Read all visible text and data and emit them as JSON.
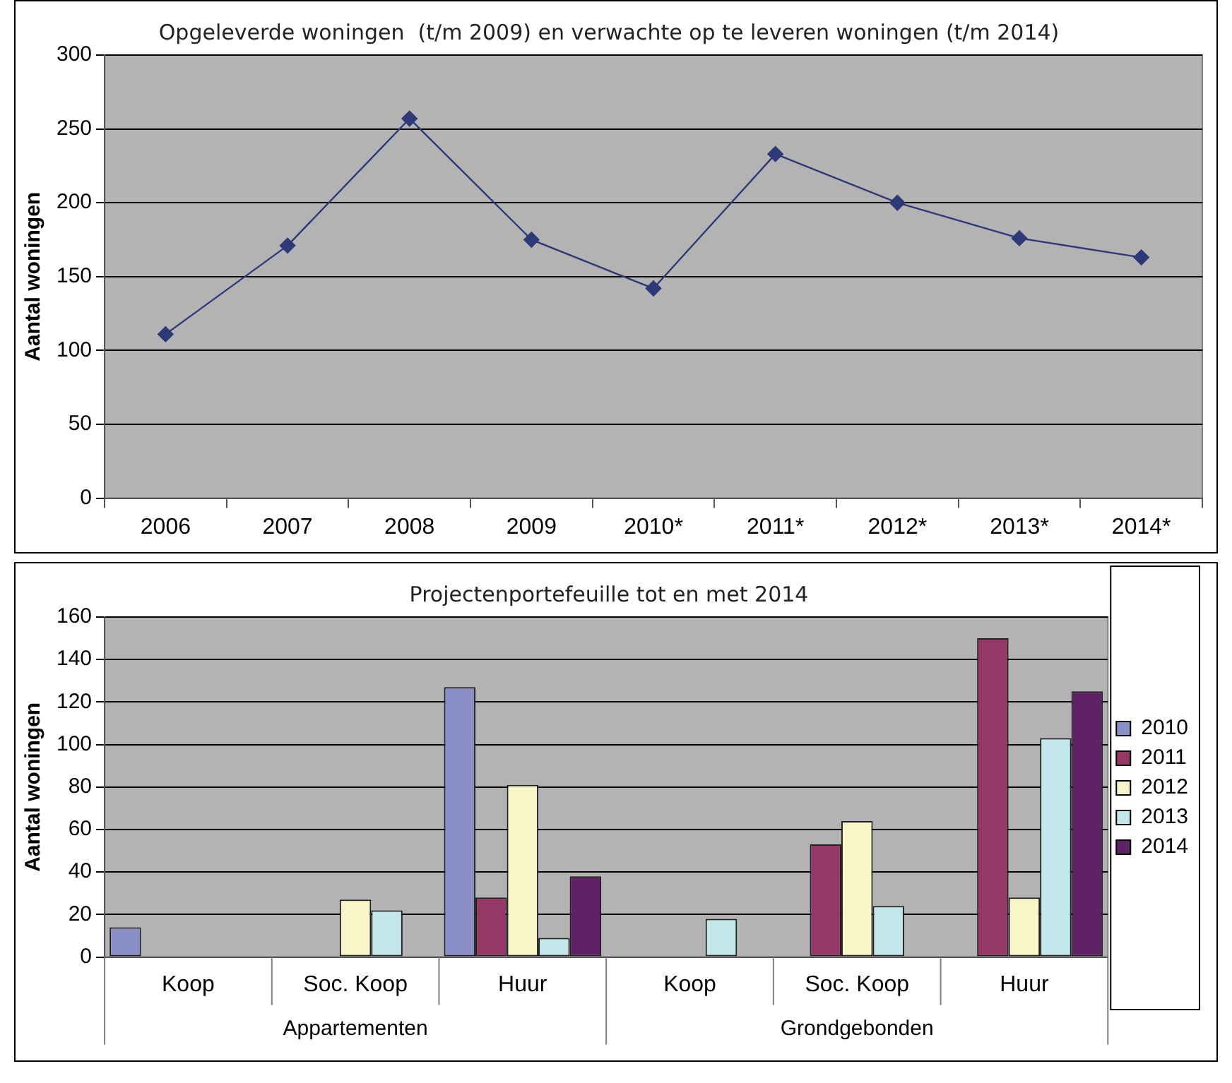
{
  "chart_data": [
    {
      "type": "line",
      "title": "Opgeleverde woningen  (t/m 2009) en verwachte op te leveren woningen (t/m 2014)",
      "ylabel": "Aantal woningen",
      "categories": [
        "2006",
        "2007",
        "2008",
        "2009",
        "2010*",
        "2011*",
        "2012*",
        "2013*",
        "2014*"
      ],
      "series": [
        {
          "color": "#2e3a78",
          "values": [
            111,
            171,
            257,
            175,
            142,
            233,
            200,
            176,
            163
          ]
        }
      ],
      "ylim": [
        0,
        300
      ],
      "yticks": [
        0,
        50,
        100,
        150,
        200,
        250,
        300
      ],
      "grid": "y",
      "legend": false,
      "marker": "diamond",
      "line_style": "solid"
    },
    {
      "type": "bar",
      "title": "Projectenportefeuille tot en met 2014",
      "ylabel": "Aantal woningen",
      "categories": [
        "Koop",
        "Soc. Koop",
        "Huur",
        "Koop",
        "Soc. Koop",
        "Huur"
      ],
      "series": [
        {
          "name": "2010",
          "color": "#8b8fc7",
          "values": [
            14,
            0,
            127,
            0,
            0,
            0
          ]
        },
        {
          "name": "2011",
          "color": "#963865",
          "values": [
            0,
            0,
            28,
            0,
            53,
            150
          ]
        },
        {
          "name": "2012",
          "color": "#f8f6c8",
          "values": [
            0,
            27,
            81,
            0,
            64,
            28
          ]
        },
        {
          "name": "2013",
          "color": "#c2e6ea",
          "values": [
            0,
            22,
            9,
            18,
            24,
            103
          ]
        },
        {
          "name": "2014",
          "color": "#612166",
          "values": [
            0,
            0,
            38,
            0,
            0,
            125
          ]
        }
      ],
      "annotations": [
        "Appartementen",
        "Grondgebonden"
      ],
      "ylim": [
        0,
        160
      ],
      "yticks": [
        0,
        20,
        40,
        60,
        80,
        100,
        120,
        140,
        160
      ],
      "grid": "y",
      "legend": "right"
    }
  ]
}
